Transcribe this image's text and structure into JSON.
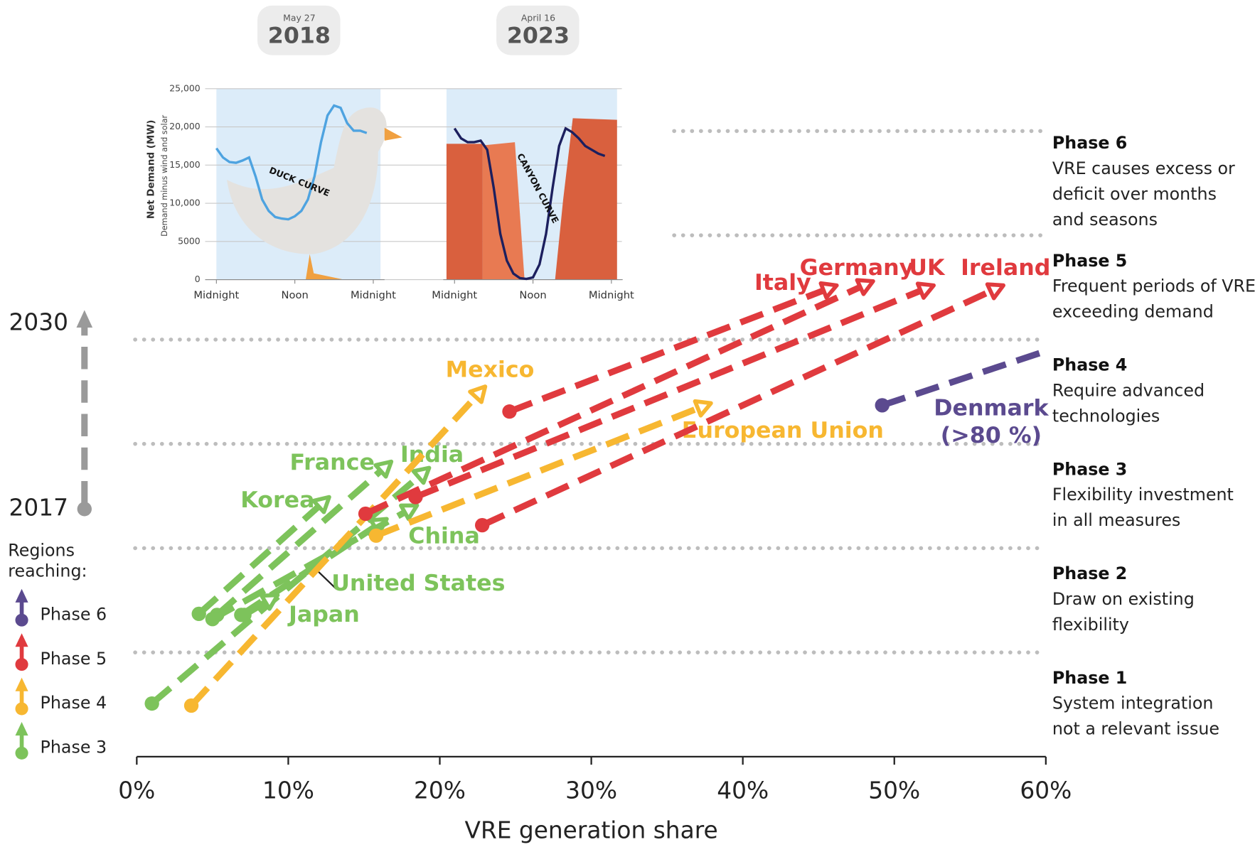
{
  "chart_data": [
    {
      "type": "line",
      "ylabel": "Net Demand (MW)",
      "ysublabel": "Demand minus wind and solar",
      "xlim": [
        0,
        24
      ],
      "xticks": [
        {
          "value": 0,
          "label": "Midnight"
        },
        {
          "value": 12,
          "label": "Noon"
        },
        {
          "value": 24,
          "label": "Midnight"
        }
      ],
      "ylim": [
        0,
        25000
      ],
      "yticks": [
        0,
        5000,
        {
          "value": 10000,
          "label": "10,000"
        },
        {
          "value": 15000,
          "label": "15,000"
        },
        {
          "value": 20000,
          "label": "20,000"
        },
        {
          "value": 25000,
          "label": "25,000"
        }
      ],
      "grid": true,
      "series": [
        {
          "name": "DUCK CURVE",
          "date": "May 27",
          "year": "2018",
          "color": "#4ea3e0",
          "x": [
            0,
            1,
            2,
            3,
            4,
            5,
            6,
            7,
            8,
            9,
            10,
            11,
            12,
            13,
            14,
            15,
            16,
            17,
            18,
            19,
            20,
            21,
            22,
            23
          ],
          "values": [
            17200,
            16000,
            15400,
            15300,
            15600,
            16000,
            13500,
            10500,
            9000,
            8200,
            8000,
            7900,
            8300,
            9000,
            10500,
            13500,
            18000,
            21500,
            22800,
            22500,
            20500,
            19500,
            19500,
            19200
          ]
        },
        {
          "name": "CANYON CURVE",
          "date": "April 16",
          "year": "2023",
          "color": "#1c1f5e",
          "x": [
            0,
            1,
            2,
            3,
            4,
            5,
            6,
            7,
            8,
            9,
            10,
            11,
            12,
            13,
            14,
            15,
            16,
            17,
            18,
            19,
            20,
            21,
            22,
            23
          ],
          "values": [
            19800,
            18500,
            18000,
            18000,
            18200,
            17000,
            12000,
            6000,
            2500,
            800,
            200,
            100,
            300,
            2000,
            6000,
            12000,
            17500,
            19800,
            19300,
            18500,
            17500,
            17000,
            16500,
            16200
          ]
        }
      ]
    },
    {
      "type": "arrow",
      "xlabel": "VRE generation share",
      "xlim": [
        0,
        60
      ],
      "xticks": [
        {
          "value": 0,
          "label": "0%"
        },
        {
          "value": 10,
          "label": "10%"
        },
        {
          "value": 20,
          "label": "20%"
        },
        {
          "value": 30,
          "label": "30%"
        },
        {
          "value": 40,
          "label": "40%"
        },
        {
          "value": 50,
          "label": "50%"
        },
        {
          "value": 60,
          "label": "60%"
        }
      ],
      "ylim": [
        0,
        6
      ],
      "phase_lines": [
        1,
        2,
        3,
        4,
        5,
        6
      ],
      "years": {
        "start": "2017",
        "end": "2030"
      },
      "phases": [
        {
          "title": "Phase 6",
          "description": [
            "VRE causes excess or",
            "deficit over months",
            "and seasons"
          ]
        },
        {
          "title": "Phase 5",
          "description": [
            "Frequent periods of VRE",
            "exceeding demand"
          ]
        },
        {
          "title": "Phase 4",
          "description": [
            "Require advanced",
            "technologies"
          ]
        },
        {
          "title": "Phase 3",
          "description": [
            "Flexibility investment",
            "in all measures"
          ]
        },
        {
          "title": "Phase 2",
          "description": [
            "Draw on existing",
            "flexibility"
          ]
        },
        {
          "title": "Phase 1",
          "description": [
            "System integration",
            "not a relevant issue"
          ]
        }
      ],
      "legend_title": [
        "Regions",
        "reaching:"
      ],
      "legend": [
        {
          "label": "Phase 6",
          "color": "#5b4a8f"
        },
        {
          "label": "Phase 5",
          "color": "#e03a3e"
        },
        {
          "label": "Phase 4",
          "color": "#f7b731"
        },
        {
          "label": "Phase 3",
          "color": "#7dc35b"
        }
      ],
      "series": [
        {
          "name": "Korea",
          "color": "#7dc35b",
          "x": [
            4.1,
            12.7
          ],
          "values": [
            1.37,
            2.49
          ],
          "arrow": true
        },
        {
          "name": "France",
          "color": "#7dc35b",
          "x": [
            5.3,
            16.8
          ],
          "values": [
            1.36,
            2.83
          ],
          "arrow": true
        },
        {
          "name": "India",
          "color": "#7dc35b",
          "x": [
            1.0,
            19.3
          ],
          "values": [
            0.51,
            2.77
          ],
          "arrow": true
        },
        {
          "name": "United States",
          "color": "#7dc35b",
          "x": [
            6.9,
            16.5
          ],
          "values": [
            1.36,
            2.28
          ],
          "arrow": true
        },
        {
          "name": "China",
          "color": "#7dc35b",
          "x": [
            5.0,
            18.5
          ],
          "values": [
            1.32,
            2.41
          ],
          "arrow": true
        },
        {
          "name": "Japan",
          "color": "#7dc35b",
          "x": [
            7.1,
            9.3
          ],
          "values": [
            1.36,
            1.55
          ],
          "arrow": true
        },
        {
          "name": "Mexico",
          "color": "#f7b731",
          "x": [
            3.6,
            23.0
          ],
          "values": [
            0.49,
            3.55
          ],
          "arrow": true
        },
        {
          "name": "European Union",
          "color": "#f7b731",
          "x": [
            15.8,
            37.9
          ],
          "values": [
            2.12,
            3.39
          ],
          "arrow": true
        },
        {
          "name": "Italy",
          "color": "#e03a3e",
          "x": [
            24.6,
            46.2
          ],
          "values": [
            3.31,
            4.52
          ],
          "arrow": true
        },
        {
          "name": "Germany",
          "color": "#e03a3e",
          "x": [
            15.1,
            48.6
          ],
          "values": [
            2.33,
            4.56
          ],
          "arrow": true
        },
        {
          "name": "UK",
          "color": "#e03a3e",
          "x": [
            18.4,
            52.6
          ],
          "values": [
            2.49,
            4.52
          ],
          "arrow": true
        },
        {
          "name": "Ireland",
          "color": "#e03a3e",
          "x": [
            22.8,
            57.2
          ],
          "values": [
            2.22,
            4.52
          ],
          "arrow": true
        },
        {
          "name": "Denmark",
          "note": "(>80 %)",
          "color": "#5b4a8f",
          "x": [
            49.2,
            60.0
          ],
          "values": [
            3.37,
            3.89
          ],
          "arrow": false
        }
      ]
    }
  ]
}
